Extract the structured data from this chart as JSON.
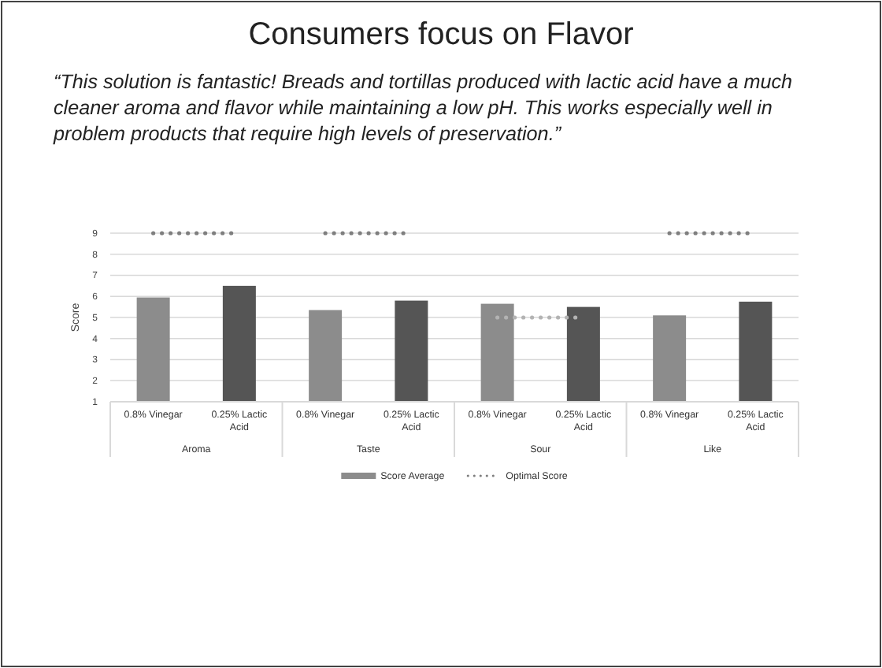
{
  "chart_data": {
    "type": "bar",
    "title": "Consumers focus on Flavor",
    "subtitle": "“This solution is fantastic!  Breads and tortillas produced with lactic acid have a much cleaner aroma and flavor while maintaining a low pH.  This works especially well in problem products that require high levels of preservation.”",
    "categories": [
      "0.8% Vinegar",
      "0.25% Lactic Acid",
      "0.8% Vinegar",
      "0.25% Lactic Acid",
      "0.8% Vinegar",
      "0.25% Lactic Acid",
      "0.8% Vinegar",
      "0.25% Lactic Acid"
    ],
    "annotations": [
      "Aroma",
      "Taste",
      "Sour",
      "Like"
    ],
    "ylabel": "Score",
    "ylim": [
      1,
      9
    ],
    "yticks": [
      1,
      2,
      3,
      4,
      5,
      6,
      7,
      8,
      9
    ],
    "grid": "y",
    "legend": "bottom",
    "series": [
      {
        "name": "Score Average",
        "color": "#8c8c8c",
        "colors": [
          "#8c8c8c",
          "#555555",
          "#8c8c8c",
          "#555555",
          "#8c8c8c",
          "#555555",
          "#8c8c8c",
          "#555555"
        ],
        "values": [
          5.95,
          6.5,
          5.35,
          5.8,
          5.65,
          5.5,
          5.1,
          5.75
        ]
      },
      {
        "name": "Optimal Score",
        "type": "line",
        "color": "#7f7f7f",
        "line_style": "dotted",
        "values": [
          9,
          9,
          null,
          null,
          null,
          null,
          null,
          null
        ]
      },
      {
        "type": "line",
        "color": "#7f7f7f",
        "line_style": "dotted",
        "values": [
          null,
          null,
          9,
          9,
          null,
          null,
          null,
          null
        ]
      },
      {
        "type": "line",
        "color": "#b3b3b3",
        "line_style": "dotted",
        "values": [
          null,
          null,
          null,
          null,
          5,
          5,
          null,
          null
        ]
      },
      {
        "type": "line",
        "color": "#7f7f7f",
        "line_style": "dotted",
        "values": [
          null,
          null,
          null,
          null,
          null,
          null,
          9,
          9
        ]
      }
    ]
  }
}
